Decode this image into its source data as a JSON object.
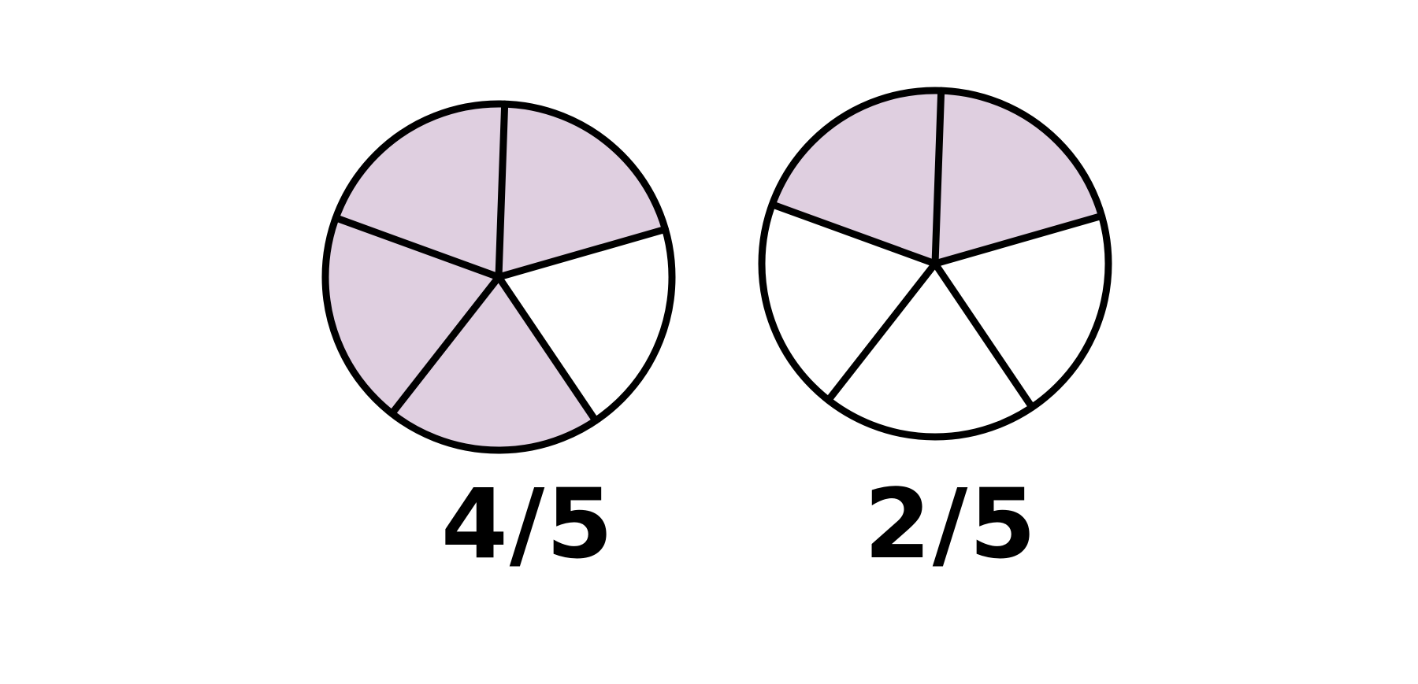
{
  "fraction_circles": [
    {
      "label": "4/5",
      "total_parts": 5,
      "shaded_parts": 4
    },
    {
      "label": "2/5",
      "total_parts": 5,
      "shaded_parts": 2
    }
  ],
  "colors": {
    "shaded": "#dfcfe0",
    "unshaded": "#ffffff",
    "outline": "#000000",
    "label_text": "#000000"
  }
}
